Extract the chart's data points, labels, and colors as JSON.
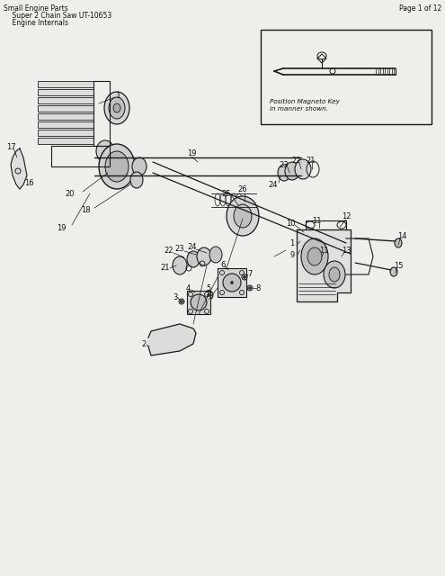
{
  "title_line1": "Small Engine Parts",
  "title_line2": "    Super 2 Chain Saw UT-10653",
  "title_line3": "    Engine Internals",
  "page_info": "Page 1 of 12",
  "bg_color": "#f0eeea",
  "line_color": "#1a1a1a",
  "inset_text_line1": "Position Magneto Key",
  "inset_text_line2": "in manner shown."
}
